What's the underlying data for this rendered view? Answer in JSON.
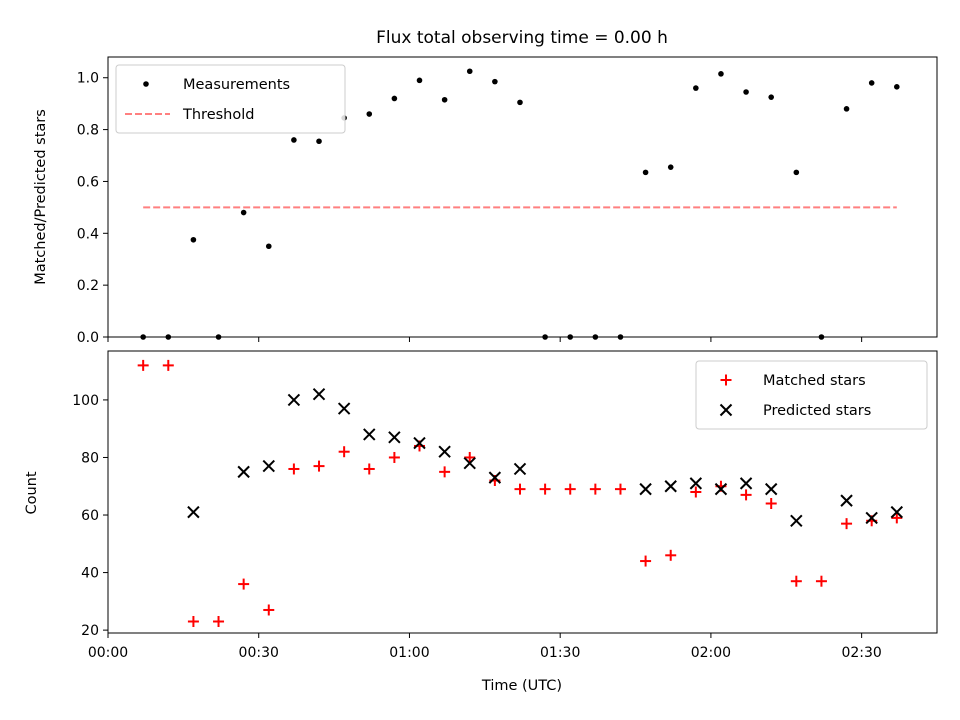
{
  "title": "Flux total observing time = 0.00 h",
  "colors": {
    "measurement": "#000000",
    "threshold": "#ff8080",
    "matched": "#ff0000",
    "predicted": "#000000"
  },
  "chart_data": [
    {
      "type": "scatter",
      "ylabel": "Matched/Predicted stars",
      "ylim": [
        0,
        1.08
      ],
      "yticks": [
        0.0,
        0.2,
        0.4,
        0.6,
        0.8,
        1.0
      ],
      "ytick_labels": [
        "0.0",
        "0.2",
        "0.4",
        "0.6",
        "0.8",
        "1.0"
      ],
      "legend": {
        "position": "top-left",
        "entries": [
          {
            "label": "Measurements",
            "marker": "dot"
          },
          {
            "label": "Threshold",
            "marker": "dashed-line"
          }
        ]
      },
      "series": [
        {
          "name": "Measurements",
          "marker": "dot",
          "x": [
            "00:07",
            "00:12",
            "00:17",
            "00:22",
            "00:27",
            "00:32",
            "00:37",
            "00:42",
            "00:47",
            "00:52",
            "00:57",
            "01:02",
            "01:07",
            "01:12",
            "01:17",
            "01:22",
            "01:27",
            "01:32",
            "01:37",
            "01:42",
            "01:47",
            "01:52",
            "01:57",
            "02:02",
            "02:07",
            "02:12",
            "02:17",
            "02:22",
            "02:27",
            "02:32",
            "02:37"
          ],
          "y": [
            0.0,
            0.0,
            0.375,
            0.0,
            0.48,
            0.35,
            0.76,
            0.755,
            0.845,
            0.86,
            0.92,
            0.99,
            0.915,
            1.025,
            0.985,
            0.905,
            0.0,
            0.0,
            0.0,
            0.0,
            0.635,
            0.655,
            0.96,
            1.015,
            0.945,
            0.925,
            0.635,
            0.0,
            0.88,
            0.98,
            0.965
          ]
        },
        {
          "name": "Threshold",
          "marker": "dashed-line",
          "x": [
            "00:07",
            "02:37"
          ],
          "y": [
            0.5,
            0.5
          ]
        }
      ]
    },
    {
      "type": "scatter",
      "xlabel": "Time (UTC)",
      "ylabel": "Count",
      "xlim": [
        "00:00",
        "02:45"
      ],
      "ylim": [
        19,
        117
      ],
      "yticks": [
        20,
        40,
        60,
        80,
        100
      ],
      "xticks": [
        "00:00",
        "00:30",
        "01:00",
        "01:30",
        "02:00",
        "02:30"
      ],
      "legend": {
        "position": "top-right",
        "entries": [
          {
            "label": "Matched stars",
            "marker": "plus"
          },
          {
            "label": "Predicted stars",
            "marker": "x"
          }
        ]
      },
      "series": [
        {
          "name": "Matched stars",
          "marker": "plus",
          "x": [
            "00:07",
            "00:12",
            "00:17",
            "00:22",
            "00:27",
            "00:32",
            "00:37",
            "00:42",
            "00:47",
            "00:52",
            "00:57",
            "01:02",
            "01:07",
            "01:12",
            "01:17",
            "01:22",
            "01:27",
            "01:32",
            "01:37",
            "01:42",
            "01:47",
            "01:52",
            "01:57",
            "02:02",
            "02:07",
            "02:12",
            "02:17",
            "02:22",
            "02:27",
            "02:32",
            "02:37"
          ],
          "y": [
            112,
            112,
            23,
            23,
            36,
            27,
            76,
            77,
            82,
            76,
            80,
            84,
            75,
            80,
            72,
            69,
            69,
            69,
            69,
            69,
            44,
            46,
            68,
            70,
            67,
            64,
            37,
            37,
            57,
            58,
            59
          ]
        },
        {
          "name": "Predicted stars",
          "marker": "x",
          "x": [
            "00:17",
            "00:27",
            "00:32",
            "00:37",
            "00:42",
            "00:47",
            "00:52",
            "00:57",
            "01:02",
            "01:07",
            "01:12",
            "01:17",
            "01:22",
            "01:47",
            "01:52",
            "01:57",
            "02:02",
            "02:07",
            "02:12",
            "02:17",
            "02:27",
            "02:32",
            "02:37"
          ],
          "y": [
            61,
            75,
            77,
            100,
            102,
            97,
            88,
            87,
            85,
            82,
            78,
            73,
            76,
            69,
            70,
            71,
            69,
            71,
            69,
            58,
            65,
            59,
            61
          ]
        }
      ]
    }
  ]
}
